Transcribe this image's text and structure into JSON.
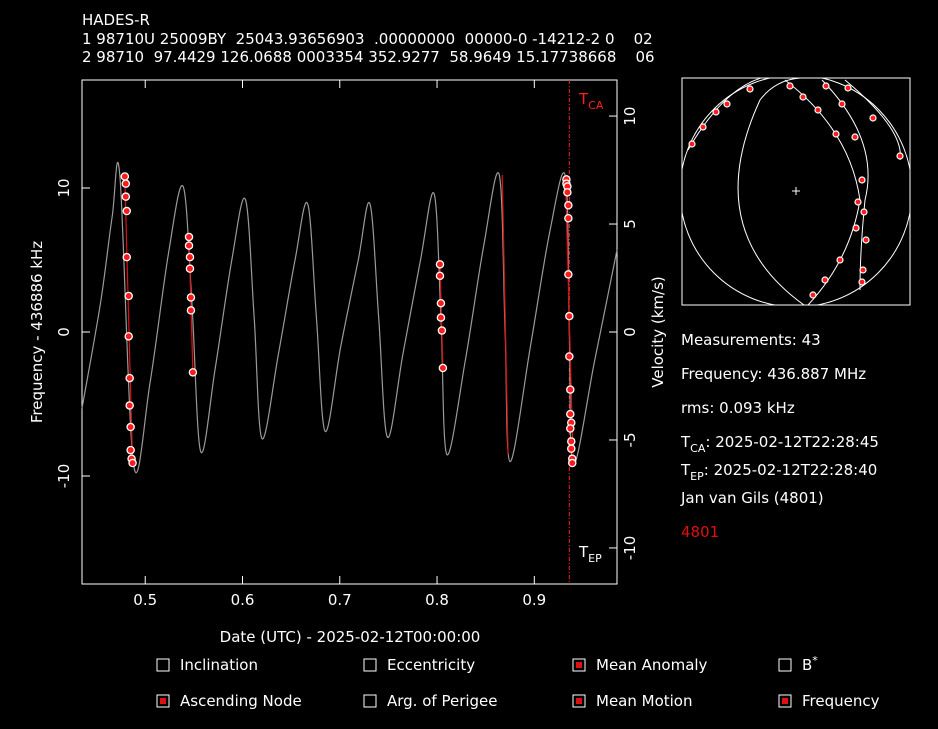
{
  "header": {
    "lines": [
      "HADES-R",
      "1 98710U 25009BY  25043.93656903  .00000000  00000-0 -14212-2 0    02",
      "2 98710  97.4429 126.0688 0003354 352.9277  58.9649 15.17738668    06"
    ]
  },
  "chart_data": {
    "type": "line",
    "x_label": "Date (UTC) - 2025-02-12T00:00:00",
    "y_label": "Frequency - 436886 kHz",
    "y2_label": "Velocity (km/s)",
    "xlim": [
      0.435,
      0.985
    ],
    "xticks": [
      0.5,
      0.6,
      0.7,
      0.8,
      0.9
    ],
    "ylim": [
      -17.5,
      17.5
    ],
    "yticks": [
      -10,
      0,
      10
    ],
    "y2lim": [
      -11.67,
      11.67
    ],
    "y2ticks": [
      -10,
      -5,
      0,
      5,
      10
    ],
    "tca": {
      "symbol": "T",
      "sub": "CA",
      "x": 0.936,
      "color": "#ff2020"
    },
    "tep": {
      "symbol": "T",
      "sub": "EP"
    },
    "series": [
      {
        "type": "line",
        "color": "#9a9a9a",
        "x": [
          0.435,
          0.454,
          0.466,
          0.474,
          0.488,
          0.505,
          0.524,
          0.539,
          0.548,
          0.557,
          0.572,
          0.589,
          0.603,
          0.612,
          0.62,
          0.637,
          0.654,
          0.667,
          0.676,
          0.685,
          0.701,
          0.719,
          0.731,
          0.74,
          0.749,
          0.765,
          0.783,
          0.797,
          0.804,
          0.81,
          0.829,
          0.848,
          0.864,
          0.87,
          0.875,
          0.896,
          0.916,
          0.932,
          0.936,
          0.94,
          0.962,
          0.985
        ],
        "values": [
          -5.3,
          2.0,
          8.0,
          10.8,
          -9.2,
          -3.5,
          5.5,
          10.1,
          2.0,
          -8.3,
          -2.5,
          5.0,
          9.2,
          1.0,
          -7.4,
          -1.5,
          5.0,
          8.9,
          1.0,
          -6.9,
          -1.0,
          5.0,
          8.9,
          1.0,
          -7.3,
          -1.5,
          5.0,
          9.6,
          1.0,
          -8.5,
          -2.0,
          6.0,
          10.9,
          0.0,
          -9.0,
          -1.0,
          7.0,
          10.8,
          0.0,
          -9.2,
          -2.0,
          5.7
        ]
      },
      {
        "type": "line",
        "color": "#e01010",
        "x": [
          0.479,
          0.487,
          null,
          0.545,
          0.549,
          null,
          0.803,
          0.806,
          null,
          0.867,
          0.873,
          null,
          0.932,
          0.94
        ],
        "values": [
          10.8,
          -9.2,
          null,
          6.6,
          -2.8,
          null,
          4.8,
          -2.6,
          null,
          10.9,
          -8.5,
          null,
          10.8,
          -9.2
        ]
      },
      {
        "type": "scatter",
        "color": "#ff1a1a",
        "x": [
          0.479,
          0.48,
          0.48,
          0.481,
          0.481,
          0.483,
          0.483,
          0.484,
          0.484,
          0.485,
          0.485,
          0.486,
          0.487,
          0.545,
          0.545,
          0.546,
          0.546,
          0.547,
          0.547,
          0.549,
          0.803,
          0.803,
          0.804,
          0.804,
          0.805,
          0.806,
          0.933,
          0.933,
          0.934,
          0.934,
          0.935,
          0.935,
          0.935,
          0.936,
          0.936,
          0.937,
          0.937,
          0.938,
          0.937,
          0.938,
          0.938,
          0.939,
          0.939
        ],
        "values": [
          10.8,
          10.3,
          9.4,
          8.4,
          5.2,
          2.5,
          -0.3,
          -3.2,
          -5.1,
          -6.6,
          -8.2,
          -8.8,
          -9.1,
          6.6,
          6.0,
          5.2,
          4.4,
          2.4,
          1.5,
          -2.8,
          4.7,
          3.9,
          2.0,
          1.0,
          0.1,
          -2.5,
          10.6,
          10.3,
          10.1,
          9.7,
          8.8,
          7.9,
          4.0,
          1.1,
          -1.7,
          -4.0,
          -5.7,
          -6.3,
          -6.7,
          -7.6,
          -8.1,
          -8.8,
          -9.1
        ]
      }
    ]
  },
  "info": {
    "measurements": "Measurements: 43",
    "frequency": "Frequency: 436.887 MHz",
    "rms": "rms: 0.093 kHz",
    "tca": {
      "symbol": "T",
      "sub": "CA",
      "text": ": 2025-02-12T22:28:45"
    },
    "tep": {
      "symbol": "T",
      "sub": "EP",
      "text": ": 2025-02-12T22:28:40"
    },
    "observer": "Jan van Gils (4801)",
    "site": "4801"
  },
  "controls": {
    "options": [
      {
        "name": "Inclination",
        "checked": false
      },
      {
        "name": "Eccentricity",
        "checked": false
      },
      {
        "name": "Mean Anomaly",
        "checked": true
      },
      {
        "name": "B",
        "sup": "*",
        "checked": false
      },
      {
        "name": "Ascending Node",
        "checked": true
      },
      {
        "name": "Arg. of Perigee",
        "checked": false
      },
      {
        "name": "Mean Motion",
        "checked": true
      },
      {
        "name": "Frequency",
        "checked": true
      }
    ]
  }
}
